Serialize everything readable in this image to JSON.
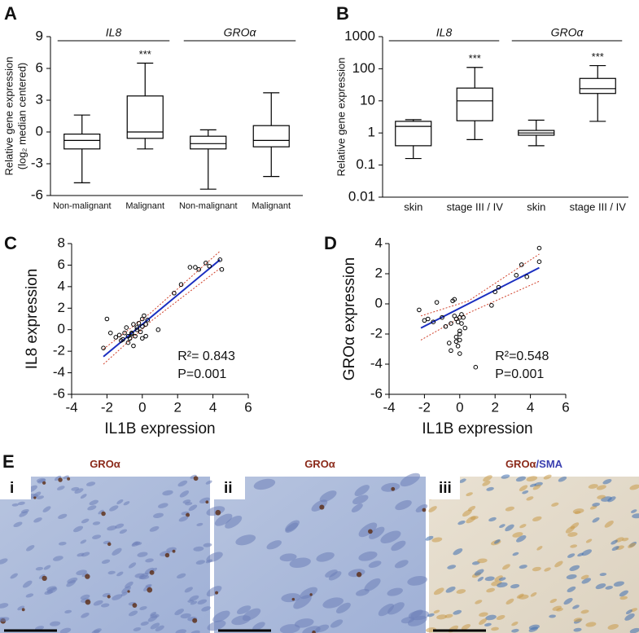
{
  "chart_data": [
    {
      "type": "box",
      "panel_label": "A",
      "ylabel": [
        "Relative gene expression",
        "(log₂ median centered)"
      ],
      "ylim": [
        -6,
        9
      ],
      "yticks": [
        -6,
        -3,
        0,
        3,
        6,
        9
      ],
      "color": "#000000",
      "groups": [
        {
          "label": "IL8",
          "categories": [
            "Non-malignant",
            "Malignant"
          ],
          "boxes": [
            {
              "min": -4.8,
              "q1": -1.6,
              "median": -0.8,
              "q3": -0.2,
              "max": 1.6
            },
            {
              "min": -1.6,
              "q1": -0.6,
              "median": 0,
              "q3": 3.4,
              "max": 6.5,
              "mark": "***"
            }
          ]
        },
        {
          "label": "GROα",
          "categories": [
            "Non-malignant",
            "Malignant"
          ],
          "boxes": [
            {
              "min": -5.4,
              "q1": -1.6,
              "median": -1.1,
              "q3": -0.4,
              "max": 0.2
            },
            {
              "min": -4.2,
              "q1": -1.4,
              "median": -0.8,
              "q3": 0.6,
              "max": 3.7
            }
          ]
        }
      ]
    },
    {
      "type": "box",
      "panel_label": "B",
      "ylabel": [
        "Relative gene expression"
      ],
      "log_scale": true,
      "ylim": [
        0.01,
        1000
      ],
      "yticks": [
        0.01,
        0.1,
        1,
        10,
        100,
        1000
      ],
      "color": "#000000",
      "groups": [
        {
          "label": "IL8",
          "categories": [
            "skin",
            "stage III / IV"
          ],
          "boxes": [
            {
              "min": 0.16,
              "q1": 0.4,
              "median": 1.6,
              "q3": 2.3,
              "max": 2.6
            },
            {
              "min": 0.62,
              "q1": 2.4,
              "median": 10,
              "q3": 25,
              "max": 110,
              "mark": "***"
            }
          ]
        },
        {
          "label": "GROα",
          "categories": [
            "skin",
            "stage III / IV"
          ],
          "boxes": [
            {
              "min": 0.4,
              "q1": 0.85,
              "median": 1.0,
              "q3": 1.2,
              "max": 2.5
            },
            {
              "min": 2.3,
              "q1": 17,
              "median": 24,
              "q3": 50,
              "max": 125,
              "mark": "***"
            }
          ]
        }
      ]
    },
    {
      "type": "scatter",
      "panel_label": "C",
      "xlabel": "IL1B expression",
      "ylabel": "IL8 expression",
      "xlim": [
        -4,
        6
      ],
      "xticks": [
        -4,
        -2,
        0,
        2,
        4,
        6
      ],
      "ylim": [
        -6,
        8
      ],
      "yticks": [
        -6,
        -4,
        -2,
        0,
        2,
        4,
        6,
        8
      ],
      "annotations": [
        "R²= 0.843",
        "P=0.001"
      ],
      "fit_color": "#1a2ec0",
      "ci_color": "#d0402a",
      "x": [
        -2.2,
        -2,
        -1.8,
        -1.5,
        -1.3,
        -1.2,
        -1,
        -0.9,
        -0.8,
        -0.7,
        -0.6,
        -0.5,
        -0.4,
        -0.3,
        -0.2,
        -0.1,
        0,
        0,
        0.1,
        0.2,
        0.3,
        -0.5,
        -0.8,
        -0.3,
        0.2,
        0.9,
        1.8,
        2.2,
        2.7,
        3,
        3.2,
        3.6,
        3.8,
        4.4,
        4.5,
        -0.6,
        0,
        -1.1
      ],
      "y": [
        -1.7,
        1,
        -0.3,
        -0.7,
        -0.5,
        -1,
        -0.3,
        0.2,
        -1.2,
        -0.8,
        -0.3,
        0.5,
        -0.6,
        0.2,
        0.6,
        -0.2,
        0.3,
        -0.8,
        1.3,
        0.5,
        0.9,
        -1.5,
        -0.6,
        0,
        -0.6,
        0,
        3.4,
        4.2,
        5.8,
        5.8,
        5.6,
        6.2,
        5.9,
        6.5,
        5.6,
        -0.4,
        1,
        -0.9
      ],
      "fit": {
        "x": [
          -2.2,
          4.4
        ],
        "y": [
          -2.5,
          6.5
        ]
      },
      "ci_upper": {
        "x": [
          -2.2,
          0.5,
          4.4
        ],
        "y": [
          -1.8,
          1.6,
          7.3
        ]
      },
      "ci_lower": {
        "x": [
          -2.2,
          0.5,
          4.4
        ],
        "y": [
          -3.2,
          0.8,
          5.7
        ]
      }
    },
    {
      "type": "scatter",
      "panel_label": "D",
      "xlabel": "IL1B expression",
      "ylabel": "GROα expression",
      "xlim": [
        -4,
        6
      ],
      "xticks": [
        -4,
        -2,
        0,
        2,
        4,
        6
      ],
      "ylim": [
        -6,
        4
      ],
      "yticks": [
        -6,
        -4,
        -2,
        0,
        2,
        4
      ],
      "annotations": [
        "R²=0.548",
        "P=0.001"
      ],
      "fit_color": "#1a2ec0",
      "ci_color": "#d0402a",
      "x": [
        -2.3,
        -2,
        -1.8,
        -1.5,
        -1.3,
        -1,
        -0.8,
        -0.6,
        -0.5,
        -0.4,
        -0.3,
        -0.2,
        -0.1,
        0,
        0,
        0,
        0.1,
        0.2,
        -0.2,
        -0.1,
        0,
        -0.5,
        -0.3,
        0,
        0.1,
        0.9,
        1.8,
        2,
        2.2,
        3.2,
        3.5,
        3.8,
        4.5,
        4.5,
        -0.2,
        0.3
      ],
      "y": [
        -0.4,
        -1.1,
        -1,
        -1.2,
        0.1,
        -0.9,
        -1.5,
        -2.6,
        -3.1,
        0.2,
        0.3,
        -1,
        -1.2,
        -2,
        -2.4,
        -3.3,
        -1.3,
        -0.9,
        -2.5,
        -2.8,
        -1.8,
        -1.3,
        -0.8,
        -0.9,
        -0.7,
        -4.2,
        -0.1,
        0.8,
        1.1,
        1.9,
        2.6,
        1.8,
        2.8,
        3.7,
        -2.2,
        -1.6
      ],
      "fit": {
        "x": [
          -2.2,
          4.5
        ],
        "y": [
          -1.6,
          2.4
        ]
      },
      "ci_upper": {
        "x": [
          -2.2,
          0.5,
          4.5
        ],
        "y": [
          -0.8,
          0.2,
          3.3
        ]
      },
      "ci_lower": {
        "x": [
          -2.2,
          0.5,
          4.5
        ],
        "y": [
          -2.4,
          -0.6,
          1.5
        ]
      }
    }
  ],
  "panel_e": {
    "label": "E",
    "images": [
      {
        "numeral": "i",
        "stain": [
          "GROα"
        ]
      },
      {
        "numeral": "ii",
        "stain": [
          "GROα"
        ]
      },
      {
        "numeral": "iii",
        "stain": [
          "GROα",
          "/SMA"
        ]
      }
    ]
  }
}
